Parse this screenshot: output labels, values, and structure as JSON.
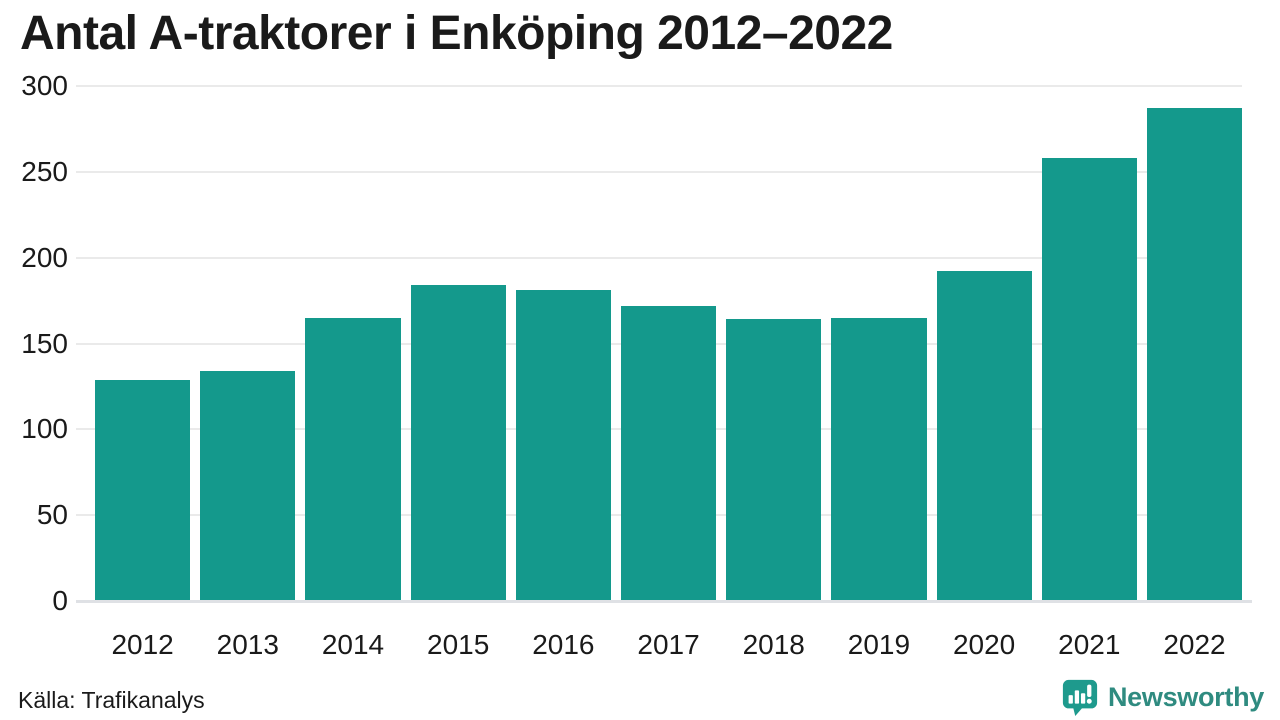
{
  "title": "Antal A-traktorer i Enköping 2012–2022",
  "source": "Källa: Trafikanalys",
  "branding": {
    "name": "Newsworthy",
    "icon": "newsworthy-pin-barchart-icon"
  },
  "colors": {
    "bar": "#14998c",
    "grid": "#eaeaea",
    "baseline": "#dfe1e5",
    "text": "#1a1a1a",
    "brand-text": "#2f8b80",
    "brand-icon": "#1e9a8d"
  },
  "chart_data": {
    "type": "bar",
    "title": "Antal A-traktorer i Enköping 2012–2022",
    "categories": [
      "2012",
      "2013",
      "2014",
      "2015",
      "2016",
      "2017",
      "2018",
      "2019",
      "2020",
      "2021",
      "2022"
    ],
    "values": [
      129,
      134,
      165,
      184,
      181,
      172,
      164,
      165,
      192,
      258,
      287
    ],
    "xlabel": "",
    "ylabel": "",
    "ylim": [
      0,
      300
    ],
    "yticks": [
      0,
      50,
      100,
      150,
      200,
      250,
      300
    ],
    "grid": true,
    "legend": false
  }
}
